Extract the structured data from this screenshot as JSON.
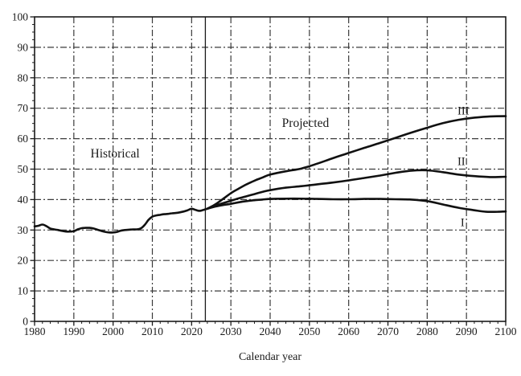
{
  "chart_data": {
    "type": "line",
    "title": "",
    "xlabel": "Calendar year",
    "ylabel": "",
    "xlim": [
      1980,
      2100
    ],
    "ylim": [
      0,
      100
    ],
    "x_tick_labels": [
      "1980",
      "1990",
      "2000",
      "2010",
      "2020",
      "2030",
      "2040",
      "2050",
      "2060",
      "2070",
      "2080",
      "2090",
      "2100"
    ],
    "y_tick_labels": [
      "0",
      "10",
      "20",
      "30",
      "40",
      "50",
      "60",
      "70",
      "80",
      "90",
      "100"
    ],
    "x_minor_step": 2,
    "y_minor_step": 2.5,
    "grid": "dashed major gridlines both axes",
    "legend_position": "none",
    "line_color": "#111111",
    "grid_color": "#3a3a3a",
    "projection_divider_year": 2023.5,
    "annotations": [
      {
        "id": "historical",
        "text": "Historical",
        "x": 2000.5,
        "y": 55
      },
      {
        "id": "projected",
        "text": "Projected",
        "x": 2049,
        "y": 65
      },
      {
        "id": "curve-iii",
        "text": "III",
        "x": 2089.2,
        "y": 68.9
      },
      {
        "id": "curve-ii",
        "text": "II",
        "x": 2088.7,
        "y": 52.3
      },
      {
        "id": "curve-i",
        "text": "I",
        "x": 2089.0,
        "y": 32.3
      }
    ],
    "series": [
      {
        "name": "Historical",
        "key": "historical",
        "points": [
          [
            1980,
            31.2
          ],
          [
            1981,
            31.4
          ],
          [
            1982,
            31.8
          ],
          [
            1983,
            31.3
          ],
          [
            1984,
            30.5
          ],
          [
            1985,
            30.2
          ],
          [
            1986,
            30.0
          ],
          [
            1987,
            29.7
          ],
          [
            1988,
            29.5
          ],
          [
            1989,
            29.5
          ],
          [
            1990,
            29.6
          ],
          [
            1991,
            30.2
          ],
          [
            1992,
            30.6
          ],
          [
            1993,
            30.7
          ],
          [
            1994,
            30.7
          ],
          [
            1995,
            30.5
          ],
          [
            1996,
            30.1
          ],
          [
            1997,
            29.7
          ],
          [
            1998,
            29.4
          ],
          [
            1999,
            29.2
          ],
          [
            2000,
            29.2
          ],
          [
            2001,
            29.4
          ],
          [
            2002,
            29.8
          ],
          [
            2003,
            30.0
          ],
          [
            2004,
            30.1
          ],
          [
            2005,
            30.2
          ],
          [
            2006,
            30.2
          ],
          [
            2007,
            30.5
          ],
          [
            2008,
            31.6
          ],
          [
            2009,
            33.3
          ],
          [
            2010,
            34.4
          ],
          [
            2011,
            34.8
          ],
          [
            2012,
            35.0
          ],
          [
            2013,
            35.2
          ],
          [
            2014,
            35.3
          ],
          [
            2015,
            35.5
          ],
          [
            2016,
            35.6
          ],
          [
            2017,
            35.8
          ],
          [
            2018,
            36.1
          ],
          [
            2019,
            36.5
          ],
          [
            2020,
            37.0
          ],
          [
            2021,
            36.6
          ],
          [
            2022,
            36.3
          ],
          [
            2023,
            36.6
          ],
          [
            2024,
            37.0
          ]
        ]
      },
      {
        "name": "Alternative I",
        "key": "alt-i",
        "points": [
          [
            2024,
            37.0
          ],
          [
            2026,
            37.7
          ],
          [
            2028,
            38.2
          ],
          [
            2030,
            38.6
          ],
          [
            2032,
            39.1
          ],
          [
            2034,
            39.5
          ],
          [
            2036,
            39.8
          ],
          [
            2038,
            40.0
          ],
          [
            2040,
            40.2
          ],
          [
            2044,
            40.3
          ],
          [
            2048,
            40.3
          ],
          [
            2052,
            40.2
          ],
          [
            2056,
            40.1
          ],
          [
            2060,
            40.1
          ],
          [
            2064,
            40.2
          ],
          [
            2068,
            40.2
          ],
          [
            2072,
            40.1
          ],
          [
            2076,
            40.0
          ],
          [
            2080,
            39.5
          ],
          [
            2084,
            38.4
          ],
          [
            2088,
            37.3
          ],
          [
            2092,
            36.5
          ],
          [
            2095,
            36.0
          ],
          [
            2098,
            36.0
          ],
          [
            2100,
            36.1
          ]
        ]
      },
      {
        "name": "Alternative II",
        "key": "alt-ii",
        "points": [
          [
            2024,
            37.0
          ],
          [
            2026,
            38.0
          ],
          [
            2028,
            38.8
          ],
          [
            2030,
            39.6
          ],
          [
            2032,
            40.4
          ],
          [
            2034,
            41.1
          ],
          [
            2036,
            41.8
          ],
          [
            2038,
            42.5
          ],
          [
            2040,
            43.1
          ],
          [
            2044,
            43.9
          ],
          [
            2048,
            44.4
          ],
          [
            2052,
            45.0
          ],
          [
            2056,
            45.6
          ],
          [
            2060,
            46.3
          ],
          [
            2064,
            47.1
          ],
          [
            2068,
            47.9
          ],
          [
            2072,
            48.8
          ],
          [
            2076,
            49.5
          ],
          [
            2080,
            49.6
          ],
          [
            2084,
            49.0
          ],
          [
            2088,
            48.2
          ],
          [
            2092,
            47.7
          ],
          [
            2096,
            47.4
          ],
          [
            2100,
            47.5
          ]
        ]
      },
      {
        "name": "Alternative III",
        "key": "alt-iii",
        "points": [
          [
            2024,
            37.0
          ],
          [
            2026,
            38.4
          ],
          [
            2028,
            40.2
          ],
          [
            2030,
            42.1
          ],
          [
            2032,
            43.6
          ],
          [
            2034,
            45.0
          ],
          [
            2036,
            46.2
          ],
          [
            2038,
            47.2
          ],
          [
            2040,
            48.2
          ],
          [
            2044,
            49.3
          ],
          [
            2048,
            50.2
          ],
          [
            2052,
            51.8
          ],
          [
            2056,
            53.6
          ],
          [
            2060,
            55.3
          ],
          [
            2064,
            57.0
          ],
          [
            2068,
            58.6
          ],
          [
            2072,
            60.3
          ],
          [
            2076,
            62.0
          ],
          [
            2080,
            63.6
          ],
          [
            2084,
            65.1
          ],
          [
            2088,
            66.2
          ],
          [
            2092,
            66.9
          ],
          [
            2096,
            67.3
          ],
          [
            2100,
            67.4
          ]
        ]
      }
    ]
  }
}
